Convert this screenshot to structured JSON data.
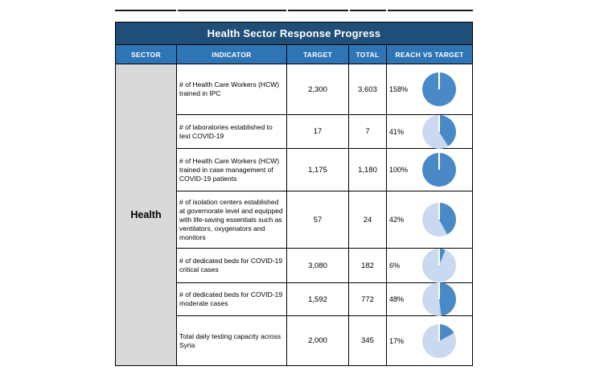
{
  "table": {
    "title": "Health Sector Response Progress",
    "sector": "Health",
    "columns": [
      "SECTOR",
      "INDICATOR",
      "TARGET",
      "TOTAL",
      "REACH VS TARGET"
    ],
    "rows": [
      {
        "indicator": "# of Health Care Workers (HCW) trained in IPC",
        "target": "2,300",
        "total": "3,603",
        "reach_label": "158%",
        "reach_pct": 158
      },
      {
        "indicator": "# of laboratories established to test COVID-19",
        "target": "17",
        "total": "7",
        "reach_label": "41%",
        "reach_pct": 41
      },
      {
        "indicator": "# of Health Care Workers (HCW) trained in case management of COVID-19 patients",
        "target": "1,175",
        "total": "1,180",
        "reach_label": "100%",
        "reach_pct": 100
      },
      {
        "indicator": "# of isolation centers established at governorate level and equipped with life-saving essentials such as ventilators, oxygenators and monitors",
        "target": "57",
        "total": "24",
        "reach_label": "42%",
        "reach_pct": 42
      },
      {
        "indicator": "# of dedicated beds for COVID-19 critical cases",
        "target": "3,080",
        "total": "182",
        "reach_label": "6%",
        "reach_pct": 6
      },
      {
        "indicator": "# of dedicated beds for COVID-19 moderate cases",
        "target": "1,592",
        "total": "772",
        "reach_label": "48%",
        "reach_pct": 48
      },
      {
        "indicator": "Total daily testing capacity across Syria",
        "target": "2,000",
        "total": "345",
        "reach_label": "17%",
        "reach_pct": 17
      }
    ]
  },
  "colors": {
    "title_bg": "#1F4E79",
    "header_bg": "#2E75B6",
    "sector_bg": "#D9D9D9",
    "pie_fill": "#4A89C7",
    "pie_rest": "#C9DAF0",
    "grid_line": "#000000"
  },
  "chart_data": {
    "type": "table",
    "title": "Health Sector Response Progress",
    "columns": [
      "SECTOR",
      "INDICATOR",
      "TARGET",
      "TOTAL",
      "REACH VS TARGET"
    ],
    "sector": "Health",
    "rows": [
      {
        "indicator": "# of Health Care Workers (HCW) trained in IPC",
        "target": 2300,
        "total": 3603,
        "reach_vs_target_pct": 158
      },
      {
        "indicator": "# of laboratories established to test COVID-19",
        "target": 17,
        "total": 7,
        "reach_vs_target_pct": 41
      },
      {
        "indicator": "# of Health Care Workers (HCW) trained in case management of COVID-19 patients",
        "target": 1175,
        "total": 1180,
        "reach_vs_target_pct": 100
      },
      {
        "indicator": "# of isolation centers established at governorate level and equipped with life-saving essentials such as ventilators, oxygenators and monitors",
        "target": 57,
        "total": 24,
        "reach_vs_target_pct": 42
      },
      {
        "indicator": "# of dedicated beds for COVID-19 critical cases",
        "target": 3080,
        "total": 182,
        "reach_vs_target_pct": 6
      },
      {
        "indicator": "# of dedicated beds for COVID-19 moderate cases",
        "target": 1592,
        "total": 772,
        "reach_vs_target_pct": 48
      },
      {
        "indicator": "Total daily testing capacity across Syria",
        "target": 2000,
        "total": 345,
        "reach_vs_target_pct": 17
      }
    ],
    "embedded_charts": {
      "type": "pie",
      "per_row_slices": "dark slice = min(reach_vs_target_pct,100), light slice = remainder, starting at 12 o'clock clockwise"
    }
  }
}
